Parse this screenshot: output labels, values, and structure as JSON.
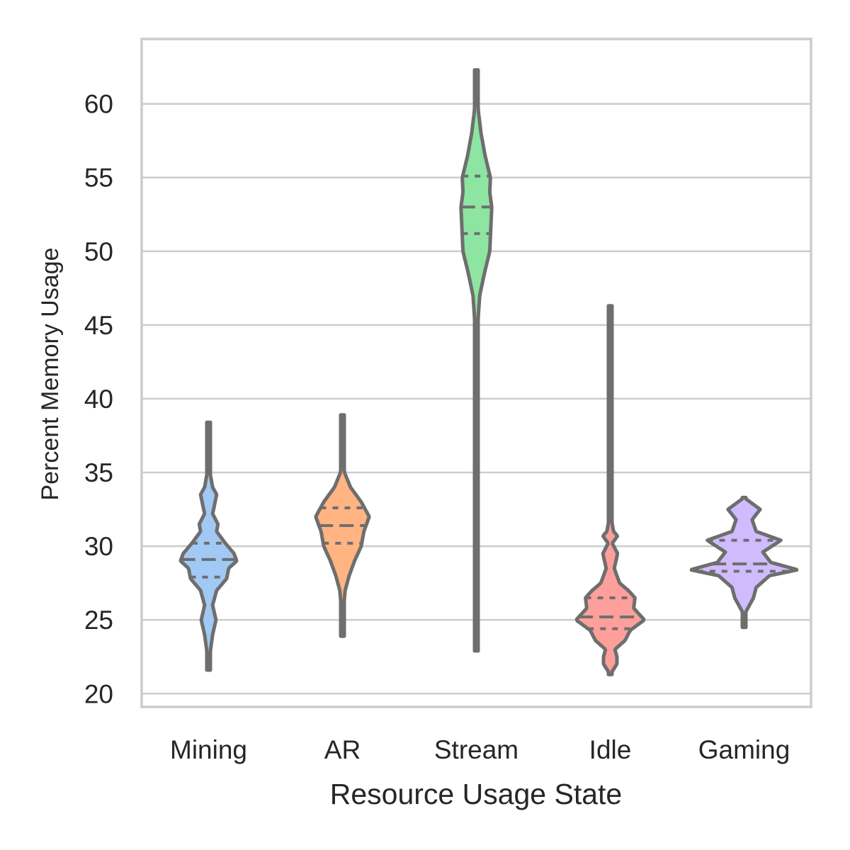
{
  "chart_data": {
    "type": "violin",
    "xlabel": "Resource Usage State",
    "ylabel": "Percent Memory Usage",
    "ylim": [
      19.1,
      64.4
    ],
    "yticks": [
      20,
      25,
      30,
      35,
      40,
      45,
      50,
      55,
      60
    ],
    "grid": "horizontal",
    "inner": "quartile",
    "categories": [
      "Mining",
      "AR",
      "Stream",
      "Idle",
      "Gaming"
    ],
    "colors": [
      "#a1c9f4",
      "#ffb482",
      "#8de5a1",
      "#ff9f9b",
      "#d0bbff"
    ],
    "violins": [
      {
        "name": "Mining",
        "min": 21.6,
        "max": 38.4,
        "q1": 27.9,
        "median": 29.1,
        "q3": 30.2,
        "profile": [
          [
            21.6,
            0.0
          ],
          [
            23.0,
            0.03
          ],
          [
            24.0,
            0.06
          ],
          [
            25.0,
            0.11
          ],
          [
            26.0,
            0.06
          ],
          [
            27.0,
            0.12
          ],
          [
            27.8,
            0.27
          ],
          [
            28.5,
            0.3
          ],
          [
            29.0,
            0.42
          ],
          [
            29.5,
            0.38
          ],
          [
            30.2,
            0.25
          ],
          [
            31.0,
            0.12
          ],
          [
            31.5,
            0.14
          ],
          [
            32.2,
            0.06
          ],
          [
            33.5,
            0.12
          ],
          [
            34.0,
            0.06
          ],
          [
            35.0,
            0.02
          ],
          [
            38.4,
            0.0
          ]
        ]
      },
      {
        "name": "AR",
        "min": 23.9,
        "max": 38.9,
        "q1": 30.2,
        "median": 31.4,
        "q3": 32.6,
        "profile": [
          [
            23.9,
            0.0
          ],
          [
            26.0,
            0.02
          ],
          [
            27.0,
            0.04
          ],
          [
            28.0,
            0.1
          ],
          [
            29.0,
            0.18
          ],
          [
            30.0,
            0.28
          ],
          [
            31.0,
            0.32
          ],
          [
            32.0,
            0.4
          ],
          [
            33.0,
            0.28
          ],
          [
            34.0,
            0.12
          ],
          [
            35.0,
            0.03
          ],
          [
            36.0,
            0.01
          ],
          [
            38.9,
            0.0
          ]
        ]
      },
      {
        "name": "Stream",
        "min": 22.9,
        "max": 62.3,
        "q1": 51.2,
        "median": 53.0,
        "q3": 55.1,
        "profile": [
          [
            22.9,
            0.0
          ],
          [
            40.0,
            0.01
          ],
          [
            45.0,
            0.02
          ],
          [
            47.0,
            0.05
          ],
          [
            48.5,
            0.12
          ],
          [
            50.0,
            0.2
          ],
          [
            51.0,
            0.21
          ],
          [
            52.0,
            0.22
          ],
          [
            53.0,
            0.23
          ],
          [
            54.0,
            0.2
          ],
          [
            55.0,
            0.21
          ],
          [
            56.5,
            0.13
          ],
          [
            58.0,
            0.07
          ],
          [
            59.5,
            0.03
          ],
          [
            62.3,
            0.0
          ]
        ]
      },
      {
        "name": "Idle",
        "min": 21.3,
        "max": 46.3,
        "q1": 24.4,
        "median": 25.2,
        "q3": 26.5,
        "profile": [
          [
            21.3,
            0.0
          ],
          [
            22.0,
            0.1
          ],
          [
            22.5,
            0.1
          ],
          [
            23.0,
            0.07
          ],
          [
            23.6,
            0.22
          ],
          [
            24.3,
            0.3
          ],
          [
            25.0,
            0.51
          ],
          [
            25.8,
            0.35
          ],
          [
            26.5,
            0.37
          ],
          [
            27.0,
            0.27
          ],
          [
            27.5,
            0.14
          ],
          [
            28.5,
            0.06
          ],
          [
            29.5,
            0.11
          ],
          [
            30.2,
            0.03
          ],
          [
            30.7,
            0.11
          ],
          [
            31.0,
            0.05
          ],
          [
            32.0,
            0.01
          ],
          [
            46.3,
            0.0
          ]
        ]
      },
      {
        "name": "Gaming",
        "min": 24.5,
        "max": 33.3,
        "q1": 28.3,
        "median": 28.8,
        "q3": 30.4,
        "profile": [
          [
            24.5,
            0.0
          ],
          [
            25.5,
            0.02
          ],
          [
            26.5,
            0.14
          ],
          [
            27.2,
            0.18
          ],
          [
            28.0,
            0.38
          ],
          [
            28.4,
            0.8
          ],
          [
            28.9,
            0.4
          ],
          [
            29.6,
            0.28
          ],
          [
            30.4,
            0.55
          ],
          [
            31.0,
            0.18
          ],
          [
            31.8,
            0.12
          ],
          [
            32.5,
            0.24
          ],
          [
            33.3,
            0.0
          ]
        ]
      }
    ]
  }
}
